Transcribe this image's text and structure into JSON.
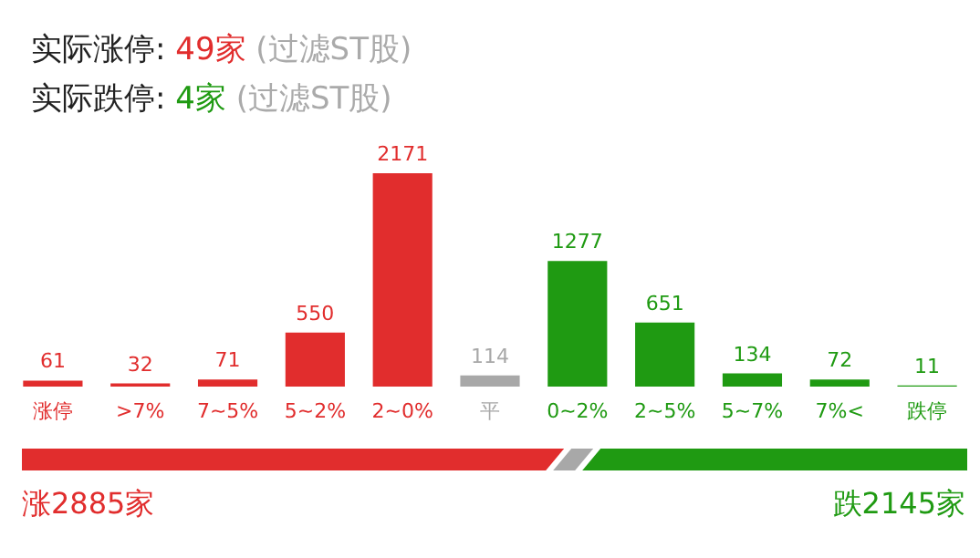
{
  "chart_data": {
    "type": "bar",
    "title": "实际涨停: 49家 (过滤ST股)",
    "subtitle": "实际跌停: 4家 (过滤ST股)",
    "categories": [
      "涨停",
      ">7%",
      "7~5%",
      "5~2%",
      "2~0%",
      "平",
      "0~2%",
      "2~5%",
      "5~7%",
      "7%<",
      "跌停"
    ],
    "values": [
      61,
      32,
      71,
      550,
      2171,
      114,
      1277,
      651,
      134,
      72,
      11
    ],
    "colors": [
      "#e12d2d",
      "#e12d2d",
      "#e12d2d",
      "#e12d2d",
      "#e12d2d",
      "#a8a8a8",
      "#1f9a12",
      "#1f9a12",
      "#1f9a12",
      "#1f9a12",
      "#1f9a12"
    ],
    "data_labels": true,
    "grid": false,
    "annotations": [
      "涨2885家",
      "跌2145家"
    ]
  }
}
